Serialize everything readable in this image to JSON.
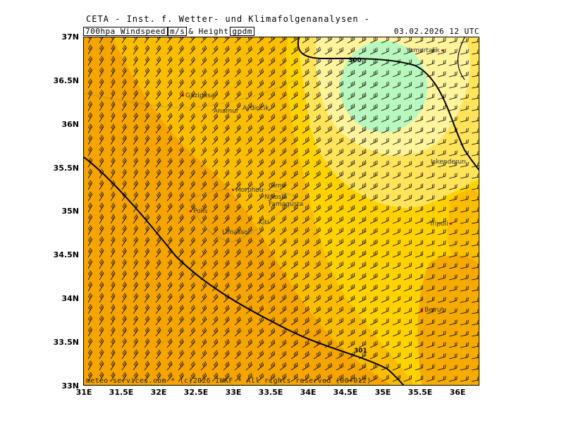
{
  "header": {
    "title": "CETA - Inst. f. Wetter- und Klimafolgenanalysen -",
    "variable": "700hpa Windspeed",
    "unit1": "m/s",
    "connector": "& Height",
    "unit2": "gpdm",
    "datetime": "03.02.2026 12 UTC"
  },
  "footer": "meteo-services.com * (c)2026 IWKF * All rights reserved (00+012)",
  "axes": {
    "y_labels": [
      "37N",
      "36.5N",
      "36N",
      "35.5N",
      "35N",
      "34.5N",
      "34N",
      "33.5N",
      "33N"
    ],
    "x_labels": [
      "31E",
      "31.5E",
      "32E",
      "32.5E",
      "33E",
      "33.5E",
      "34E",
      "34.5E",
      "35E",
      "35.5E",
      "36E"
    ]
  },
  "cities": [
    {
      "name": "Gazipasa"
    },
    {
      "name": "Anamur"
    },
    {
      "name": "Aydincik"
    },
    {
      "name": "Yumurtalik"
    },
    {
      "name": "Iskenderun"
    },
    {
      "name": "Girne"
    },
    {
      "name": "Morphou"
    },
    {
      "name": "Nikosia"
    },
    {
      "name": "Famagusta"
    },
    {
      "name": "Polis"
    },
    {
      "name": "Kiti"
    },
    {
      "name": "Limassol"
    },
    {
      "name": "Tripoli"
    },
    {
      "name": "Beirut"
    }
  ],
  "contours": [
    {
      "label": "300"
    },
    {
      "label": "301"
    }
  ],
  "colors": {
    "dark_orange": "#f5a400",
    "orange": "#fbbd00",
    "gold": "#ffd200",
    "yellow": "#ffe45a",
    "light_yellow": "#fff39c",
    "mint": "#b8f7bd"
  }
}
